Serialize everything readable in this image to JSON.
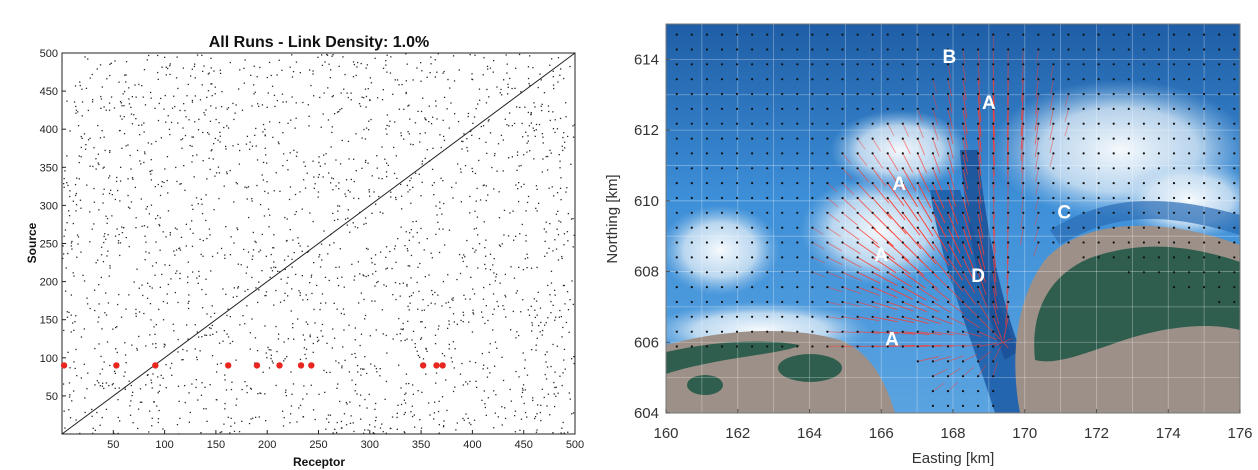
{
  "chart_data": [
    {
      "type": "scatter",
      "title": "All Runs - Link Density: 1.0%",
      "xlabel": "Receptor",
      "ylabel": "Source",
      "xlim": [
        0,
        500
      ],
      "ylim": [
        0,
        500
      ],
      "xticks": [
        50,
        100,
        150,
        200,
        250,
        300,
        350,
        400,
        450,
        500
      ],
      "yticks": [
        50,
        100,
        150,
        200,
        250,
        300,
        350,
        400,
        450,
        500
      ],
      "diagonal": true,
      "grid": false,
      "highlight_color": "#e8251f",
      "link_color": "#2a2a2a",
      "highlighted_links": {
        "source": 90,
        "receptors": [
          2,
          53,
          91,
          162,
          190,
          212,
          233,
          243,
          352,
          365,
          371
        ]
      },
      "link_density_percent": 1.0
    },
    {
      "type": "map",
      "xlabel": "Easting [km]",
      "ylabel": "Northing [km]",
      "xlim": [
        160,
        176
      ],
      "ylim": [
        604,
        615
      ],
      "xticks": [
        160,
        162,
        164,
        166,
        168,
        170,
        172,
        174,
        176
      ],
      "yticks": [
        604,
        606,
        608,
        610,
        612,
        614
      ],
      "grid": true,
      "vector_color": "#ff3b2f",
      "grid_point_color": "#111111",
      "water_color": "#3b8fd6",
      "deep_channel_color": "#1d5fa8",
      "land_color": "#2f5e4e",
      "annotations": [
        {
          "text": "B",
          "x": 167.9,
          "y": 614.1
        },
        {
          "text": "A",
          "x": 169.0,
          "y": 612.8
        },
        {
          "text": "A",
          "x": 166.5,
          "y": 610.5
        },
        {
          "text": "C",
          "x": 171.1,
          "y": 609.7
        },
        {
          "text": "A",
          "x": 166.0,
          "y": 608.5
        },
        {
          "text": "D",
          "x": 168.7,
          "y": 607.9
        },
        {
          "text": "A",
          "x": 166.3,
          "y": 606.1
        }
      ]
    }
  ]
}
